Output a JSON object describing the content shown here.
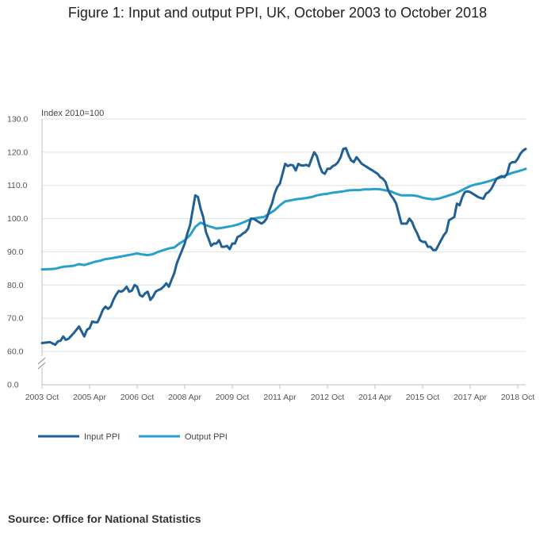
{
  "chart_data": {
    "type": "line",
    "title": "Figure 1: Input and output PPI, UK, October 2003 to October 2018",
    "ylabel": "Index 2010=100",
    "xlabel": "",
    "ylim": [
      0,
      130
    ],
    "axis_break": [
      0,
      60
    ],
    "yticks": [
      "0.0",
      "60.0",
      "70.0",
      "80.0",
      "90.0",
      "100.0",
      "110.0",
      "120.0",
      "130.0"
    ],
    "ytick_values": [
      0,
      60,
      70,
      80,
      90,
      100,
      110,
      120,
      130
    ],
    "xticks": [
      "2003 Oct",
      "2005 Apr",
      "2006 Oct",
      "2008 Apr",
      "2009 Oct",
      "2011 Apr",
      "2012 Oct",
      "2014 Apr",
      "2015 Oct",
      "2017 Apr",
      "2018 Oct"
    ],
    "xtick_months": [
      0,
      18,
      36,
      54,
      72,
      90,
      108,
      126,
      144,
      162,
      180
    ],
    "grid": true,
    "legend_position": "bottom-left",
    "series": [
      {
        "name": "Input PPI",
        "color": "#206095",
        "points": [
          [
            0,
            62.5
          ],
          [
            3,
            62.8
          ],
          [
            5,
            62.0
          ],
          [
            6,
            63.0
          ],
          [
            7,
            63.2
          ],
          [
            8,
            64.5
          ],
          [
            9,
            63.5
          ],
          [
            10,
            63.8
          ],
          [
            12,
            65.5
          ],
          [
            13,
            66.5
          ],
          [
            14,
            67.5
          ],
          [
            15,
            66.0
          ],
          [
            16,
            64.5
          ],
          [
            17,
            66.5
          ],
          [
            18,
            67.0
          ],
          [
            19,
            69.0
          ],
          [
            20,
            68.8
          ],
          [
            21,
            68.8
          ],
          [
            22,
            70.5
          ],
          [
            23,
            72.5
          ],
          [
            24,
            73.5
          ],
          [
            25,
            72.8
          ],
          [
            26,
            73.5
          ],
          [
            27,
            75.5
          ],
          [
            28,
            77.0
          ],
          [
            29,
            78.2
          ],
          [
            30,
            78.0
          ],
          [
            31,
            78.5
          ],
          [
            32,
            79.5
          ],
          [
            33,
            78.0
          ],
          [
            34,
            78.3
          ],
          [
            35,
            80.0
          ],
          [
            36,
            79.5
          ],
          [
            37,
            77.0
          ],
          [
            38,
            76.5
          ],
          [
            39,
            77.5
          ],
          [
            40,
            78.0
          ],
          [
            41,
            75.5
          ],
          [
            42,
            76.5
          ],
          [
            43,
            78.0
          ],
          [
            44,
            78.5
          ],
          [
            45,
            78.8
          ],
          [
            46,
            79.5
          ],
          [
            47,
            80.5
          ],
          [
            48,
            79.5
          ],
          [
            49,
            81.5
          ],
          [
            50,
            83.5
          ],
          [
            51,
            86.5
          ],
          [
            52,
            88.5
          ],
          [
            53,
            90.5
          ],
          [
            54,
            92.5
          ],
          [
            55,
            95.5
          ],
          [
            56,
            98.0
          ],
          [
            57,
            102.5
          ],
          [
            58,
            107.0
          ],
          [
            59,
            106.5
          ],
          [
            60,
            103.0
          ],
          [
            61,
            100.5
          ],
          [
            62,
            96.0
          ],
          [
            63,
            94.0
          ],
          [
            64,
            91.8
          ],
          [
            65,
            92.5
          ],
          [
            66,
            92.5
          ],
          [
            67,
            93.5
          ],
          [
            68,
            91.5
          ],
          [
            69,
            91.5
          ],
          [
            70,
            91.8
          ],
          [
            71,
            90.8
          ],
          [
            72,
            92.5
          ],
          [
            73,
            92.5
          ],
          [
            74,
            94.5
          ],
          [
            75,
            94.8
          ],
          [
            76,
            95.5
          ],
          [
            77,
            96.0
          ],
          [
            78,
            97.0
          ],
          [
            79,
            100.0
          ],
          [
            80,
            100.0
          ],
          [
            81,
            99.5
          ],
          [
            82,
            99.0
          ],
          [
            83,
            98.5
          ],
          [
            84,
            99.0
          ],
          [
            85,
            100.0
          ],
          [
            86,
            102.5
          ],
          [
            87,
            104.5
          ],
          [
            88,
            107.5
          ],
          [
            89,
            109.5
          ],
          [
            90,
            110.5
          ],
          [
            91,
            113.5
          ],
          [
            92,
            116.5
          ],
          [
            93,
            115.8
          ],
          [
            94,
            116.2
          ],
          [
            95,
            116.0
          ],
          [
            96,
            114.5
          ],
          [
            97,
            116.5
          ],
          [
            98,
            116.0
          ],
          [
            99,
            116.0
          ],
          [
            100,
            116.2
          ],
          [
            101,
            115.8
          ],
          [
            102,
            118.0
          ],
          [
            103,
            120.0
          ],
          [
            104,
            118.8
          ],
          [
            105,
            116.0
          ],
          [
            106,
            114.0
          ],
          [
            107,
            113.5
          ],
          [
            108,
            115.0
          ],
          [
            109,
            115.0
          ],
          [
            110,
            115.8
          ],
          [
            111,
            116.2
          ],
          [
            112,
            117.0
          ],
          [
            113,
            118.5
          ],
          [
            114,
            121.0
          ],
          [
            115,
            121.2
          ],
          [
            116,
            119.0
          ],
          [
            117,
            117.5
          ],
          [
            118,
            117.0
          ],
          [
            119,
            118.5
          ],
          [
            120,
            117.5
          ],
          [
            121,
            116.5
          ],
          [
            122,
            116.0
          ],
          [
            123,
            115.5
          ],
          [
            124,
            115.0
          ],
          [
            125,
            114.5
          ],
          [
            126,
            114.0
          ],
          [
            127,
            113.5
          ],
          [
            128,
            112.5
          ],
          [
            129,
            112.0
          ],
          [
            130,
            111.0
          ],
          [
            131,
            108.5
          ],
          [
            132,
            107.0
          ],
          [
            133,
            106.0
          ],
          [
            134,
            104.5
          ],
          [
            135,
            101.5
          ],
          [
            136,
            98.5
          ],
          [
            137,
            98.5
          ],
          [
            138,
            98.5
          ],
          [
            139,
            100.0
          ],
          [
            140,
            99.0
          ],
          [
            141,
            97.0
          ],
          [
            142,
            95.5
          ],
          [
            143,
            93.5
          ],
          [
            144,
            93.0
          ],
          [
            145,
            93.0
          ],
          [
            146,
            91.5
          ],
          [
            147,
            91.5
          ],
          [
            148,
            90.5
          ],
          [
            149,
            90.5
          ],
          [
            150,
            92.0
          ],
          [
            151,
            93.5
          ],
          [
            152,
            95.0
          ],
          [
            153,
            96.0
          ],
          [
            154,
            99.5
          ],
          [
            155,
            100.0
          ],
          [
            156,
            100.5
          ],
          [
            157,
            104.5
          ],
          [
            158,
            104.0
          ],
          [
            159,
            106.5
          ],
          [
            160,
            108.0
          ],
          [
            161,
            108.2
          ],
          [
            162,
            108.0
          ],
          [
            163,
            107.5
          ],
          [
            164,
            107.0
          ],
          [
            165,
            106.5
          ],
          [
            166,
            106.2
          ],
          [
            167,
            106.0
          ],
          [
            168,
            107.5
          ],
          [
            169,
            108.0
          ],
          [
            170,
            109.0
          ],
          [
            171,
            110.5
          ],
          [
            172,
            112.0
          ],
          [
            173,
            112.5
          ],
          [
            174,
            112.8
          ],
          [
            175,
            112.5
          ],
          [
            176,
            113.5
          ],
          [
            177,
            116.5
          ],
          [
            178,
            117.0
          ],
          [
            179,
            117.0
          ],
          [
            180,
            118.0
          ],
          [
            181,
            119.5
          ],
          [
            182,
            120.5
          ],
          [
            183,
            121.0
          ]
        ]
      },
      {
        "name": "Output PPI",
        "color": "#27a0cc",
        "points": [
          [
            0,
            84.7
          ],
          [
            3,
            84.8
          ],
          [
            5,
            84.9
          ],
          [
            7,
            85.3
          ],
          [
            8,
            85.5
          ],
          [
            10,
            85.6
          ],
          [
            12,
            85.8
          ],
          [
            14,
            86.3
          ],
          [
            16,
            86.0
          ],
          [
            18,
            86.5
          ],
          [
            20,
            87.0
          ],
          [
            22,
            87.3
          ],
          [
            24,
            87.8
          ],
          [
            26,
            88.0
          ],
          [
            28,
            88.3
          ],
          [
            30,
            88.6
          ],
          [
            32,
            88.9
          ],
          [
            34,
            89.2
          ],
          [
            36,
            89.5
          ],
          [
            38,
            89.2
          ],
          [
            40,
            89.0
          ],
          [
            42,
            89.3
          ],
          [
            44,
            90.0
          ],
          [
            46,
            90.5
          ],
          [
            48,
            91.0
          ],
          [
            50,
            91.3
          ],
          [
            52,
            92.5
          ],
          [
            54,
            93.5
          ],
          [
            56,
            95.0
          ],
          [
            58,
            97.5
          ],
          [
            60,
            98.8
          ],
          [
            62,
            98.0
          ],
          [
            64,
            97.5
          ],
          [
            66,
            97.0
          ],
          [
            68,
            97.2
          ],
          [
            70,
            97.5
          ],
          [
            72,
            97.8
          ],
          [
            74,
            98.2
          ],
          [
            76,
            98.8
          ],
          [
            78,
            99.5
          ],
          [
            80,
            100.0
          ],
          [
            82,
            100.3
          ],
          [
            84,
            100.5
          ],
          [
            86,
            101.5
          ],
          [
            88,
            102.5
          ],
          [
            90,
            104.0
          ],
          [
            92,
            105.2
          ],
          [
            94,
            105.5
          ],
          [
            96,
            105.8
          ],
          [
            98,
            106.0
          ],
          [
            100,
            106.2
          ],
          [
            102,
            106.5
          ],
          [
            104,
            107.0
          ],
          [
            106,
            107.3
          ],
          [
            108,
            107.5
          ],
          [
            110,
            107.8
          ],
          [
            112,
            108.0
          ],
          [
            114,
            108.2
          ],
          [
            116,
            108.5
          ],
          [
            118,
            108.6
          ],
          [
            120,
            108.6
          ],
          [
            122,
            108.8
          ],
          [
            124,
            108.8
          ],
          [
            126,
            108.9
          ],
          [
            128,
            108.8
          ],
          [
            130,
            108.5
          ],
          [
            132,
            108.2
          ],
          [
            134,
            107.5
          ],
          [
            136,
            107.0
          ],
          [
            138,
            107.0
          ],
          [
            140,
            107.0
          ],
          [
            142,
            106.8
          ],
          [
            144,
            106.3
          ],
          [
            146,
            106.0
          ],
          [
            148,
            105.8
          ],
          [
            150,
            106.0
          ],
          [
            152,
            106.5
          ],
          [
            154,
            107.0
          ],
          [
            156,
            107.5
          ],
          [
            158,
            108.2
          ],
          [
            160,
            109.0
          ],
          [
            162,
            109.8
          ],
          [
            164,
            110.3
          ],
          [
            166,
            110.6
          ],
          [
            168,
            111.0
          ],
          [
            170,
            111.5
          ],
          [
            172,
            112.0
          ],
          [
            174,
            112.5
          ],
          [
            176,
            113.2
          ],
          [
            178,
            113.8
          ],
          [
            180,
            114.2
          ],
          [
            182,
            114.7
          ],
          [
            183,
            115.0
          ]
        ]
      }
    ]
  },
  "source": "Source: Office for National Statistics"
}
